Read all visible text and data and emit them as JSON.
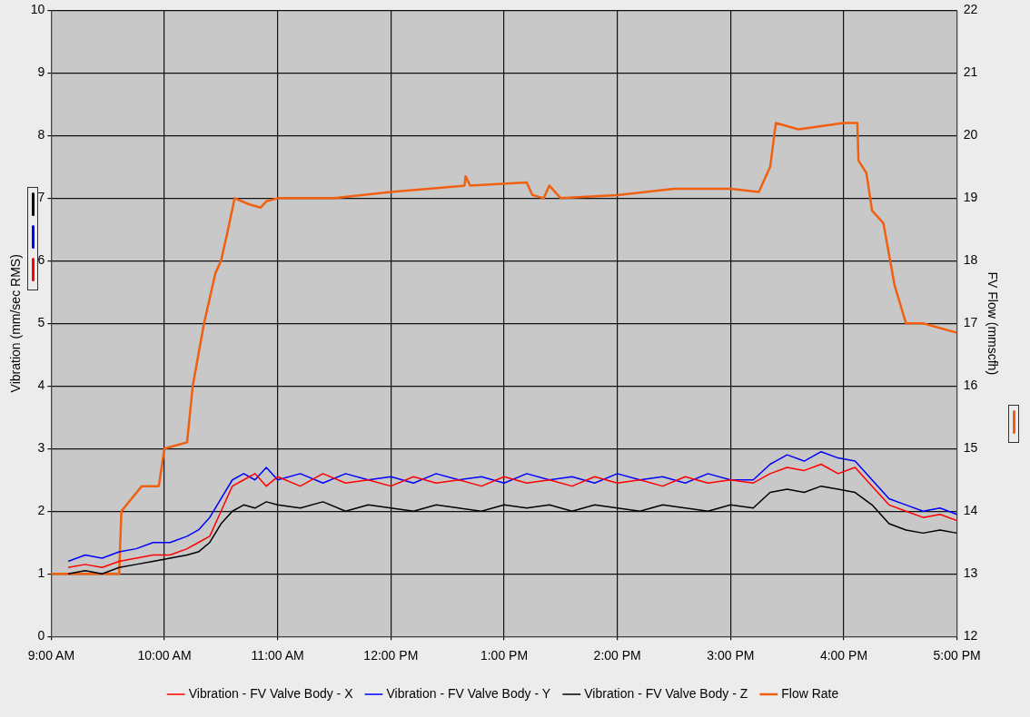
{
  "chart_data": {
    "type": "line",
    "xlim": [
      9,
      17
    ],
    "xticks": [
      {
        "value": 9,
        "label": "9:00 AM"
      },
      {
        "value": 10,
        "label": "10:00 AM"
      },
      {
        "value": 11,
        "label": "11:00 AM"
      },
      {
        "value": 12,
        "label": "12:00 PM"
      },
      {
        "value": 13,
        "label": "1:00 PM"
      },
      {
        "value": 14,
        "label": "2:00 PM"
      },
      {
        "value": 15,
        "label": "3:00 PM"
      },
      {
        "value": 16,
        "label": "4:00 PM"
      },
      {
        "value": 17,
        "label": "5:00 PM"
      }
    ],
    "ylabel": "Vibration (mm/sec RMS)",
    "y2label": "FV Flow (mmscfh)",
    "ylim": [
      0,
      10
    ],
    "yticks": [
      0,
      1,
      2,
      3,
      4,
      5,
      6,
      7,
      8,
      9,
      10
    ],
    "y2lim": [
      12,
      22
    ],
    "y2ticks": [
      12,
      13,
      14,
      15,
      16,
      17,
      18,
      19,
      20,
      21,
      22
    ],
    "x": [
      9.15,
      9.3,
      9.45,
      9.6,
      9.75,
      9.9,
      10.05,
      10.2,
      10.3,
      10.4,
      10.5,
      10.6,
      10.7,
      10.8,
      10.9,
      11.0,
      11.2,
      11.4,
      11.6,
      11.8,
      12.0,
      12.2,
      12.4,
      12.6,
      12.8,
      13.0,
      13.2,
      13.4,
      13.6,
      13.8,
      14.0,
      14.2,
      14.4,
      14.6,
      14.8,
      15.0,
      15.2,
      15.35,
      15.5,
      15.65,
      15.8,
      15.95,
      16.1,
      16.25,
      16.4,
      16.55,
      16.7,
      16.85,
      17.0
    ],
    "series": [
      {
        "name": "Vibration - FV Valve Body - X",
        "color": "#ff0000",
        "values": [
          1.1,
          1.15,
          1.1,
          1.2,
          1.25,
          1.3,
          1.3,
          1.4,
          1.5,
          1.6,
          2.0,
          2.4,
          2.5,
          2.6,
          2.4,
          2.55,
          2.4,
          2.6,
          2.45,
          2.5,
          2.4,
          2.55,
          2.45,
          2.5,
          2.4,
          2.55,
          2.45,
          2.5,
          2.4,
          2.55,
          2.45,
          2.5,
          2.4,
          2.55,
          2.45,
          2.5,
          2.45,
          2.6,
          2.7,
          2.65,
          2.75,
          2.6,
          2.7,
          2.4,
          2.1,
          2.0,
          1.9,
          1.95,
          1.85
        ]
      },
      {
        "name": "Vibration - FV Valve Body - Y",
        "color": "#0000ff",
        "values": [
          1.2,
          1.3,
          1.25,
          1.35,
          1.4,
          1.5,
          1.5,
          1.6,
          1.7,
          1.9,
          2.2,
          2.5,
          2.6,
          2.5,
          2.7,
          2.5,
          2.6,
          2.45,
          2.6,
          2.5,
          2.55,
          2.45,
          2.6,
          2.5,
          2.55,
          2.45,
          2.6,
          2.5,
          2.55,
          2.45,
          2.6,
          2.5,
          2.55,
          2.45,
          2.6,
          2.5,
          2.5,
          2.75,
          2.9,
          2.8,
          2.95,
          2.85,
          2.8,
          2.5,
          2.2,
          2.1,
          2.0,
          2.05,
          1.95
        ]
      },
      {
        "name": "Vibration - FV Valve Body - Z",
        "color": "#000000",
        "values": [
          1.0,
          1.05,
          1.0,
          1.1,
          1.15,
          1.2,
          1.25,
          1.3,
          1.35,
          1.5,
          1.8,
          2.0,
          2.1,
          2.05,
          2.15,
          2.1,
          2.05,
          2.15,
          2.0,
          2.1,
          2.05,
          2.0,
          2.1,
          2.05,
          2.0,
          2.1,
          2.05,
          2.1,
          2.0,
          2.1,
          2.05,
          2.0,
          2.1,
          2.05,
          2.0,
          2.1,
          2.05,
          2.3,
          2.35,
          2.3,
          2.4,
          2.35,
          2.3,
          2.1,
          1.8,
          1.7,
          1.65,
          1.7,
          1.65
        ]
      },
      {
        "name": "Flow Rate",
        "color": "#f06010",
        "axis": "y2",
        "x": [
          9.0,
          9.6,
          9.62,
          9.8,
          9.95,
          10.0,
          10.2,
          10.25,
          10.35,
          10.45,
          10.5,
          10.55,
          10.62,
          10.75,
          10.85,
          10.9,
          11.0,
          11.5,
          12.0,
          12.65,
          12.66,
          12.7,
          13.2,
          13.25,
          13.35,
          13.4,
          13.5,
          14.0,
          14.5,
          15.0,
          15.25,
          15.35,
          15.4,
          15.6,
          16.0,
          16.12,
          16.13,
          16.2,
          16.25,
          16.35,
          16.45,
          16.55,
          16.7,
          17.0
        ],
        "values": [
          13.0,
          13.0,
          14.0,
          14.4,
          14.4,
          15.0,
          15.1,
          16.0,
          17.0,
          17.8,
          18.0,
          18.4,
          19.0,
          18.9,
          18.85,
          18.95,
          19.0,
          19.0,
          19.1,
          19.2,
          19.35,
          19.2,
          19.25,
          19.05,
          19.0,
          19.2,
          19.0,
          19.05,
          19.15,
          19.15,
          19.1,
          19.5,
          20.2,
          20.1,
          20.2,
          20.2,
          19.6,
          19.4,
          18.8,
          18.6,
          17.6,
          17.0,
          17.0,
          16.85
        ]
      }
    ],
    "grid": true,
    "legend": "bottom",
    "marker": "none",
    "line_style": "solid"
  }
}
